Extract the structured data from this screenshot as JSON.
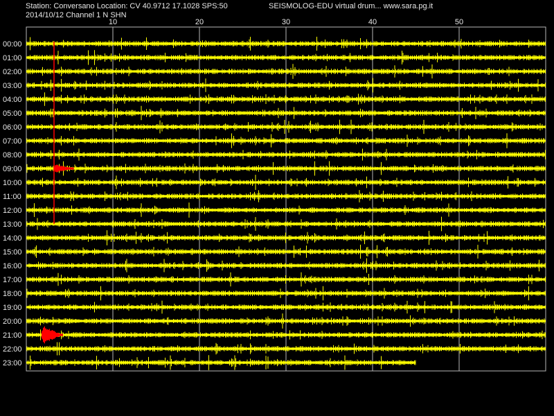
{
  "header": {
    "station_line": "Station: Conversano Location: CV 40.9712 17.1028 SPS:50",
    "title_line": "SEISMOLOG-EDU virtual drum... www.sara.pg.it",
    "date_line": "2014/10/12  Channel 1 N SHN"
  },
  "colors": {
    "background": "#000000",
    "trace": "#ffff00",
    "event": "#ff0000",
    "grid": "#b8b8b8",
    "text": "#e8e8e8"
  },
  "chart_data": {
    "type": "line",
    "subtype": "helicorder",
    "x_unit": "minutes",
    "xlim": [
      0,
      60
    ],
    "x_ticks": [
      10,
      20,
      30,
      40,
      50
    ],
    "grid": true,
    "rows": [
      "00:00",
      "01:00",
      "02:00",
      "03:00",
      "04:00",
      "05:00",
      "06:00",
      "07:00",
      "08:00",
      "09:00",
      "10:00",
      "11:00",
      "12:00",
      "13:00",
      "14:00",
      "15:00",
      "16:00",
      "17:00",
      "18:00",
      "19:00",
      "20:00",
      "21:00",
      "22:00",
      "23:00"
    ],
    "last_row_end_minute": 45,
    "events": [
      {
        "row": "09:00",
        "start_minute": 3.2,
        "end_minute": 5.5,
        "color": "red"
      },
      {
        "row": "21:00",
        "start_minute": 1.8,
        "end_minute": 4.2,
        "color": "red"
      }
    ],
    "event_marker": {
      "minute": 3.2,
      "from_row": "00:00",
      "to_row": "13:00"
    }
  }
}
